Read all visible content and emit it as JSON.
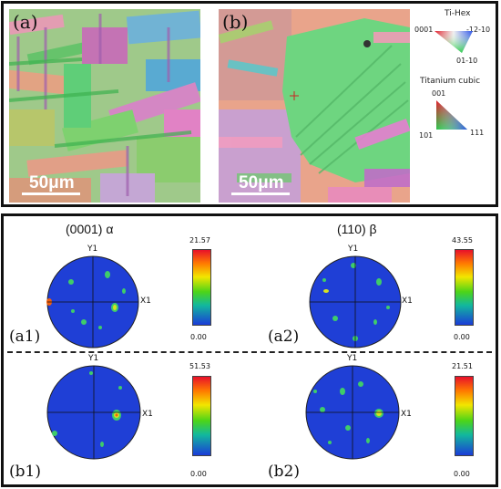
{
  "maps": [
    {
      "label": "(a)",
      "scale": "50μm"
    },
    {
      "label": "(b)",
      "scale": "50μm"
    }
  ],
  "legend": {
    "hex_title": "Ti-Hex",
    "hex_left": "0001",
    "hex_right": "-12-10",
    "hex_bottom": "01-10",
    "cubic_title": "Titanium cubic",
    "cubic_top": "001",
    "cubic_left": "101",
    "cubic_right": "111"
  },
  "pole_figures": {
    "col_titles": [
      "(0001)  α",
      "(110)  β"
    ],
    "x_axis": "X1",
    "y_axis": "Y1",
    "panels": [
      {
        "label": "(a1)",
        "max": "21.57",
        "min": "0.00"
      },
      {
        "label": "(a2)",
        "max": "43.55",
        "min": "0.00"
      },
      {
        "label": "(b1)",
        "max": "51.53",
        "min": "0.00"
      },
      {
        "label": "(b2)",
        "max": "21.51",
        "min": "0.00"
      }
    ]
  },
  "colors": {
    "pf_background": "#1f3fd6",
    "frame": "#111111",
    "cb_top": "#e8102a",
    "cb_bottom": "#1a3cd8"
  }
}
